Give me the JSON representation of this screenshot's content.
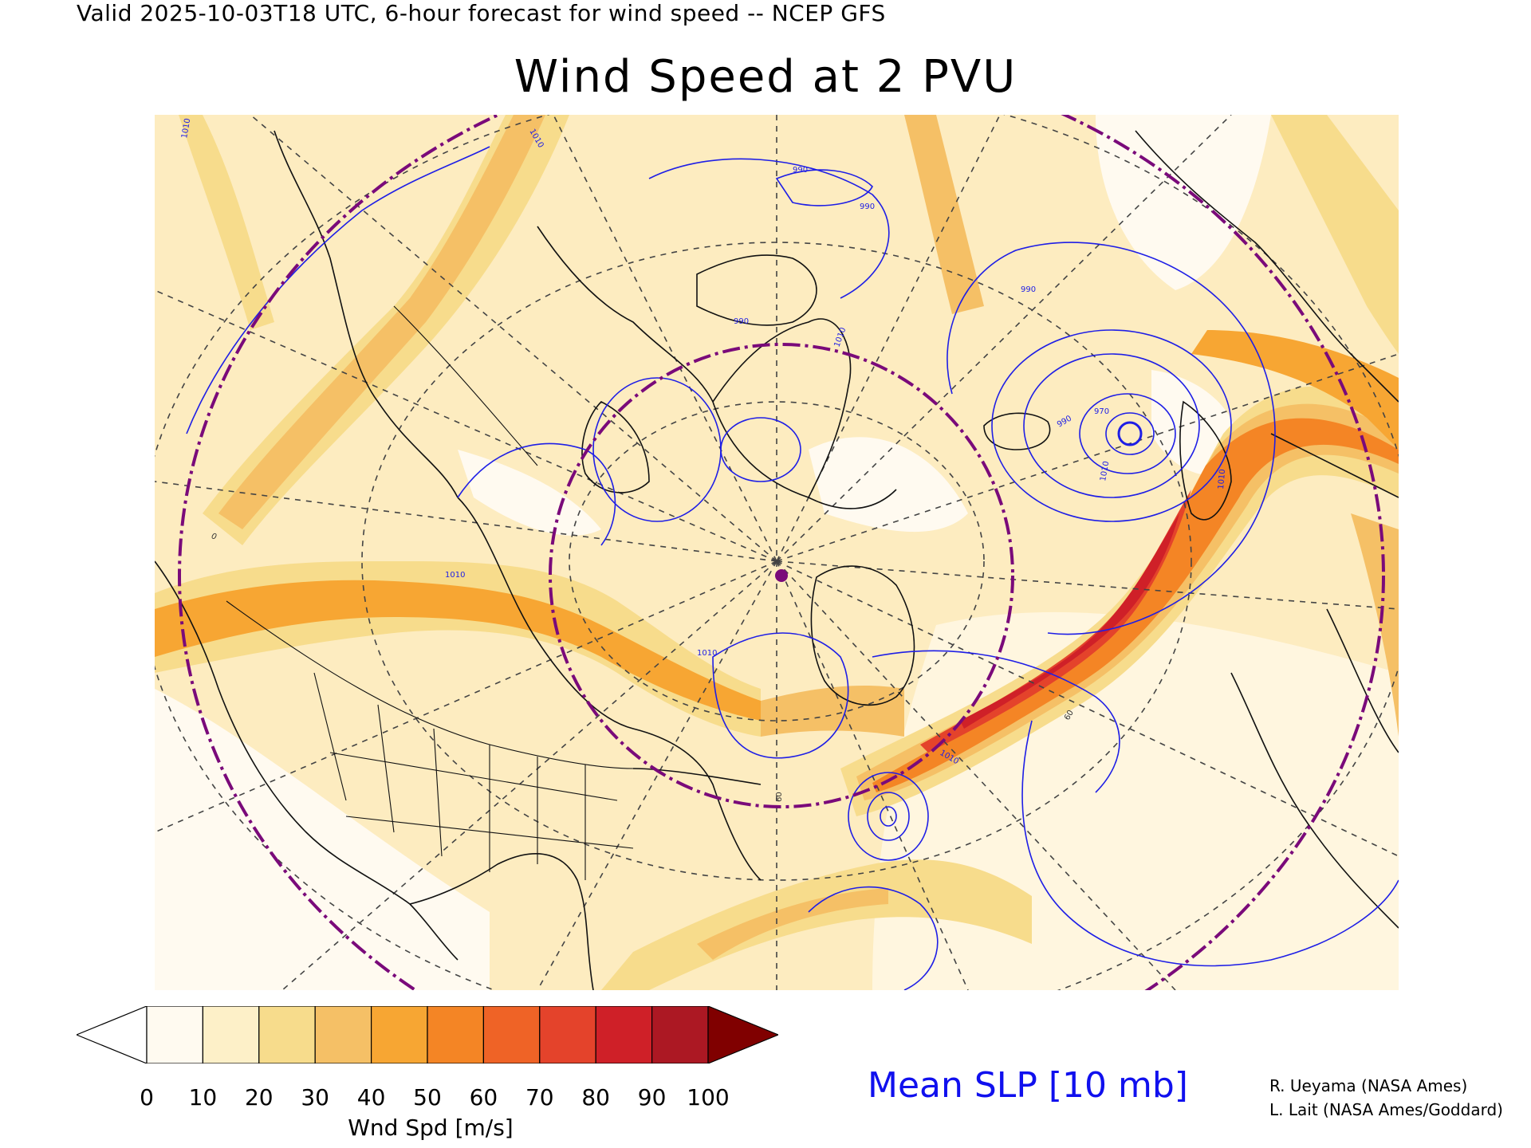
{
  "header": {
    "valid_line": "Valid 2025-10-03T18 UTC, 6-hour forecast for wind speed -- NCEP GFS",
    "title": "Wind Speed at 2 PVU"
  },
  "colorbar": {
    "ticks": [
      "0",
      "10",
      "20",
      "30",
      "40",
      "50",
      "60",
      "70",
      "80",
      "90",
      "100"
    ],
    "label": "Wnd Spd [m/s]",
    "colors": [
      "#ffffff",
      "#fffaf0",
      "#fdf0c8",
      "#f7dc8c",
      "#f5c066",
      "#f7a633",
      "#f48525",
      "#ef6326",
      "#e4432b",
      "#cf2028",
      "#ac1823",
      "#800000"
    ]
  },
  "contour_label": "Mean SLP [10 mb]",
  "credits": [
    "R. Ueyama (NASA Ames)",
    "L. Lait (NASA Ames/Goddard)"
  ],
  "isobar_labels": [
    "1010",
    "1010",
    "990",
    "990",
    "990",
    "1010",
    "990",
    "970",
    "1010",
    "1010",
    "1010",
    "990",
    "1010",
    "1010"
  ],
  "lat_labels": [
    "60",
    "60",
    "0"
  ],
  "map_colors": {
    "isobar": "#1e1ee6",
    "ring": "#7a0a7a",
    "coast": "#111111",
    "grid": "#444444"
  }
}
